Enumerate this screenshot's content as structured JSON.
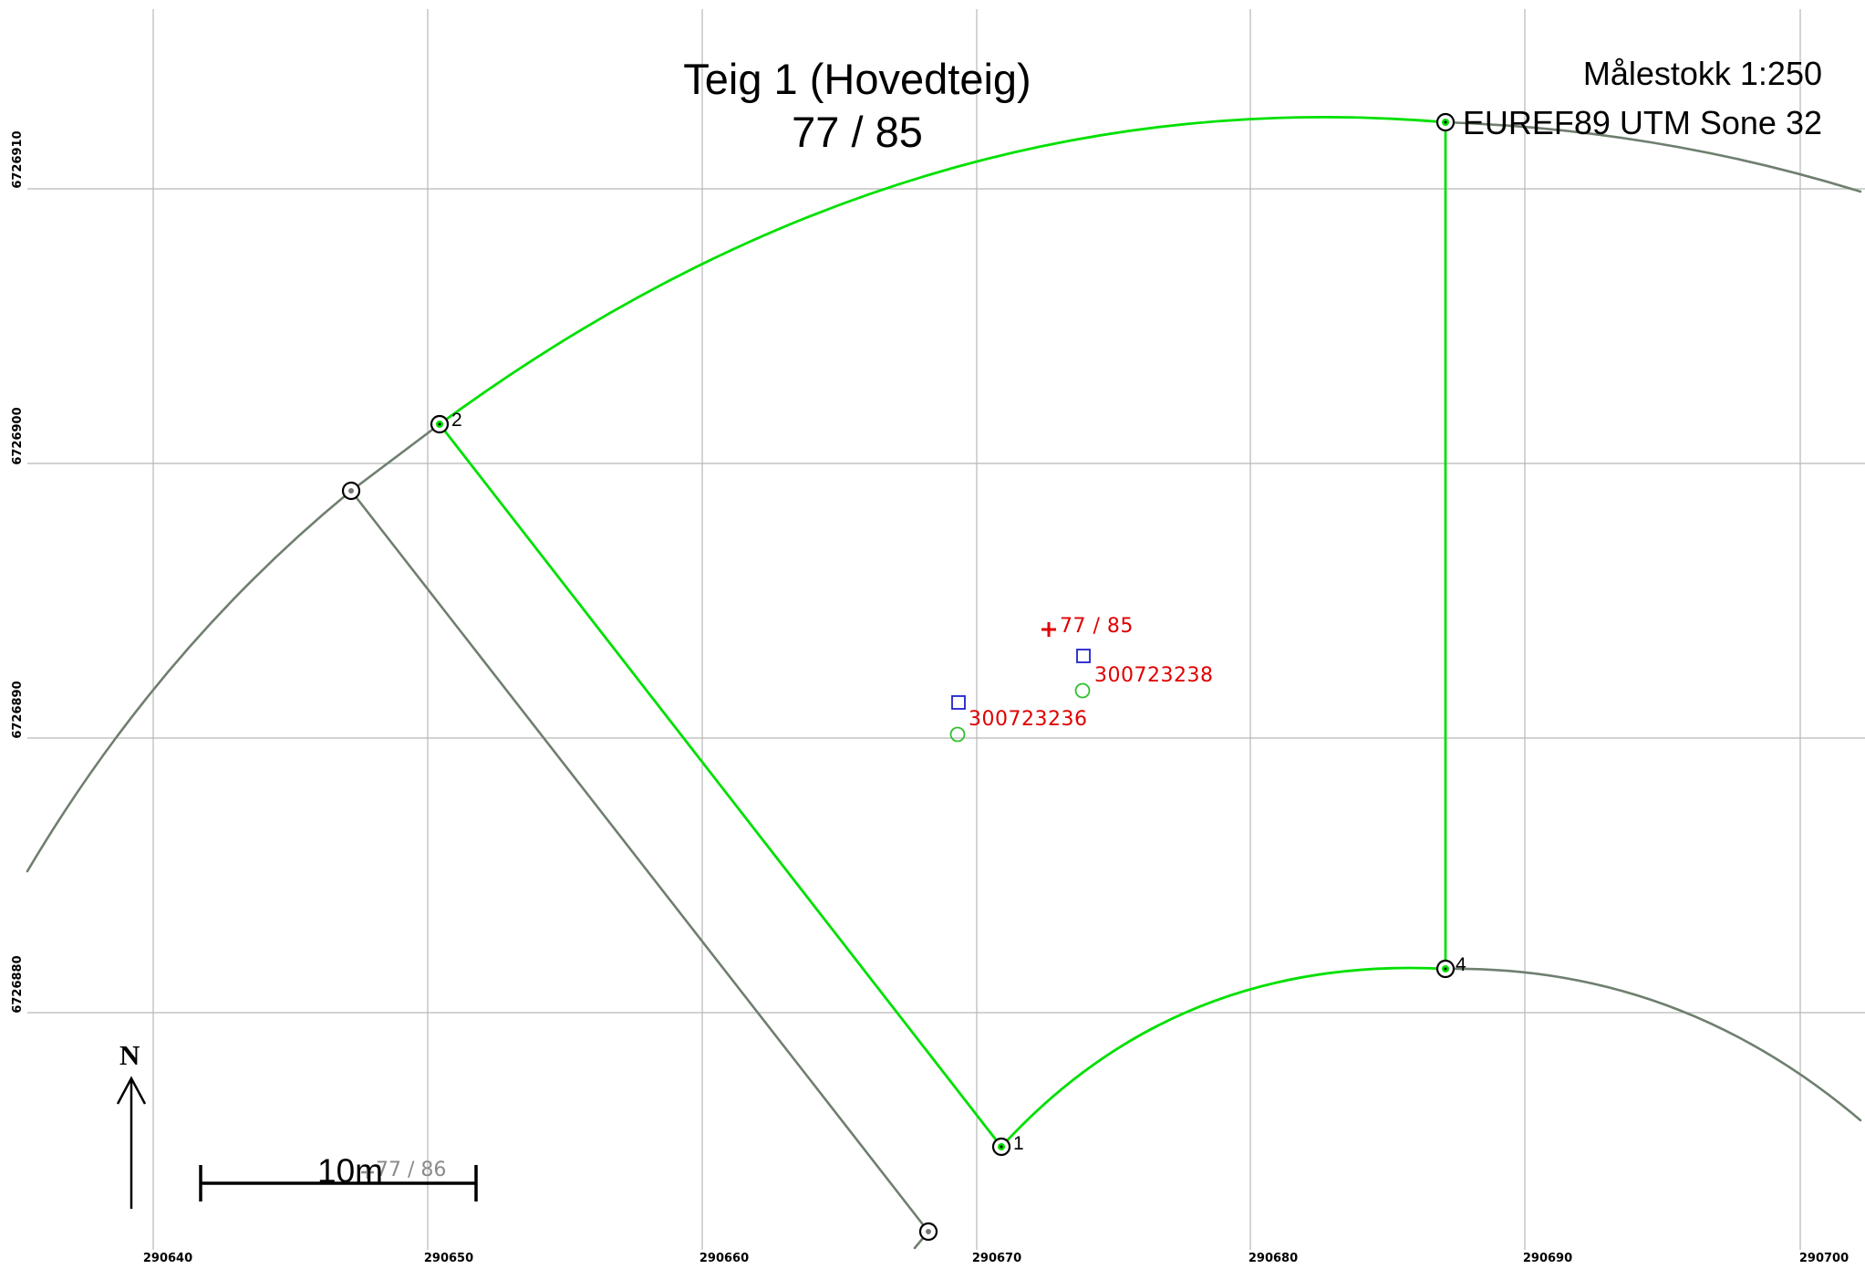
{
  "title": {
    "line1": "Teig 1 (Hovedteig)",
    "line2": "77 / 85"
  },
  "scale": "Målestokk 1:250",
  "crs": "EUREF89 UTM Sone 32",
  "north_arrow": {
    "label": "N"
  },
  "scale_bar": {
    "label": "10m"
  },
  "grid": {
    "x_ticks": [
      "290640",
      "290650",
      "290660",
      "290670",
      "290680",
      "290690",
      "290700"
    ],
    "y_ticks": [
      "6726910",
      "6726900",
      "6726890",
      "6726880"
    ]
  },
  "parcel": {
    "label": "77 / 85",
    "boundary_points": [
      {
        "id": "1",
        "label": "1"
      },
      {
        "id": "2",
        "label": "2"
      },
      {
        "id": "3",
        "label": ""
      },
      {
        "id": "4",
        "label": "4"
      }
    ]
  },
  "neighbor_parcel": {
    "label": "77 / 86"
  },
  "buildings": [
    {
      "label": "300723236"
    },
    {
      "label": "300723238"
    }
  ],
  "colors": {
    "parcel_boundary": "#00e000",
    "neighbor_boundary": "#6f7f6f",
    "grid": "#b8b8b8",
    "label_red": "#e00000",
    "building_square": "#2020d0",
    "building_point": "#30c030"
  }
}
